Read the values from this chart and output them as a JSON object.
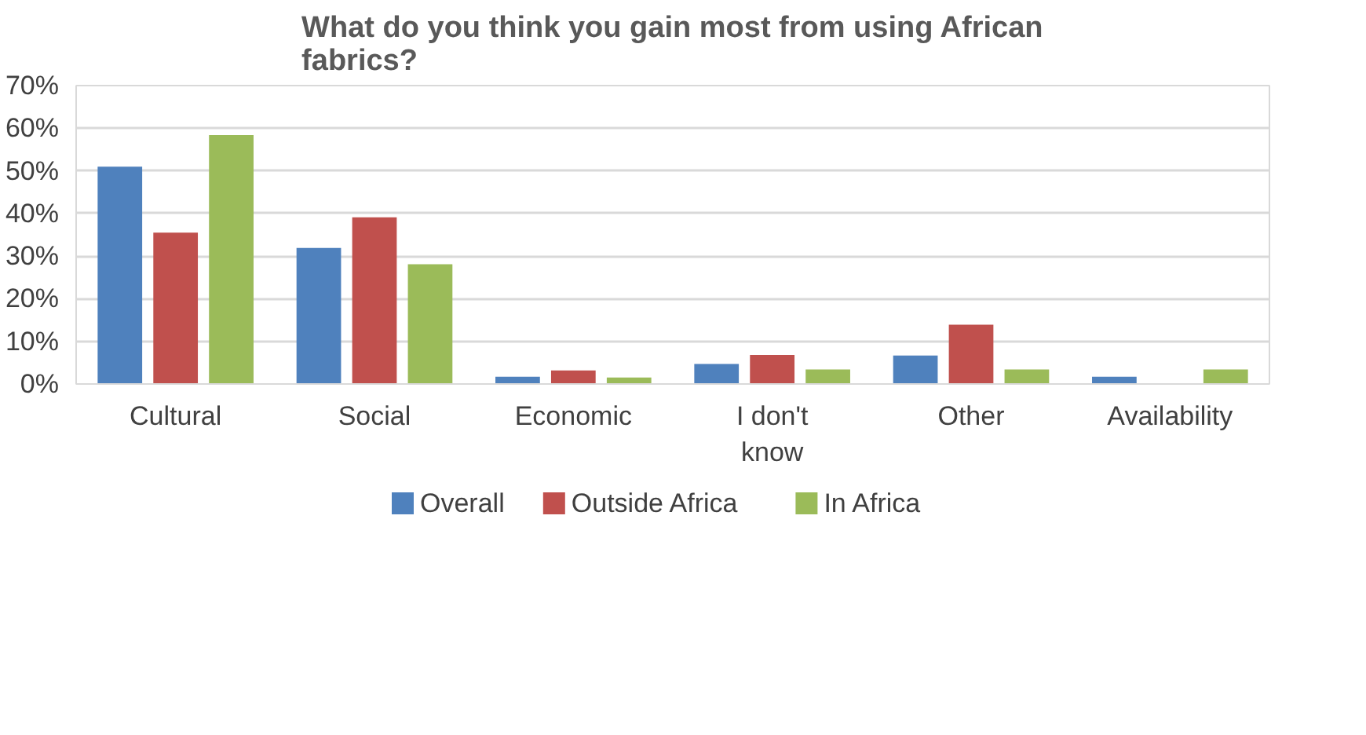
{
  "chart_data": {
    "type": "bar",
    "title": "What do you think you gain most from using African fabrics?",
    "categories": [
      "Cultural",
      "Social",
      "Economic",
      "I don't know",
      "Other",
      "Availability"
    ],
    "series": [
      {
        "name": "Overall",
        "color": "#4f81bd",
        "values": [
          51,
          31.9,
          1.7,
          4.7,
          6.7,
          1.7
        ]
      },
      {
        "name": "Outside Africa",
        "color": "#c0504d",
        "values": [
          35.5,
          39.1,
          3.2,
          6.8,
          13.9,
          0
        ]
      },
      {
        "name": "In Africa",
        "color": "#9bbb59",
        "values": [
          58.4,
          28.1,
          1.5,
          3.4,
          3.4,
          3.4
        ]
      }
    ],
    "ylim": [
      0,
      70
    ],
    "yticks": [
      {
        "value": 0,
        "label": "0%"
      },
      {
        "value": 10,
        "label": "10%"
      },
      {
        "value": 20,
        "label": "20%"
      },
      {
        "value": 30,
        "label": "30%"
      },
      {
        "value": 40,
        "label": "40%"
      },
      {
        "value": 50,
        "label": "50%"
      },
      {
        "value": 60,
        "label": "60%"
      },
      {
        "value": 70,
        "label": "70%"
      }
    ],
    "grid": "y",
    "legend": "bottom"
  }
}
